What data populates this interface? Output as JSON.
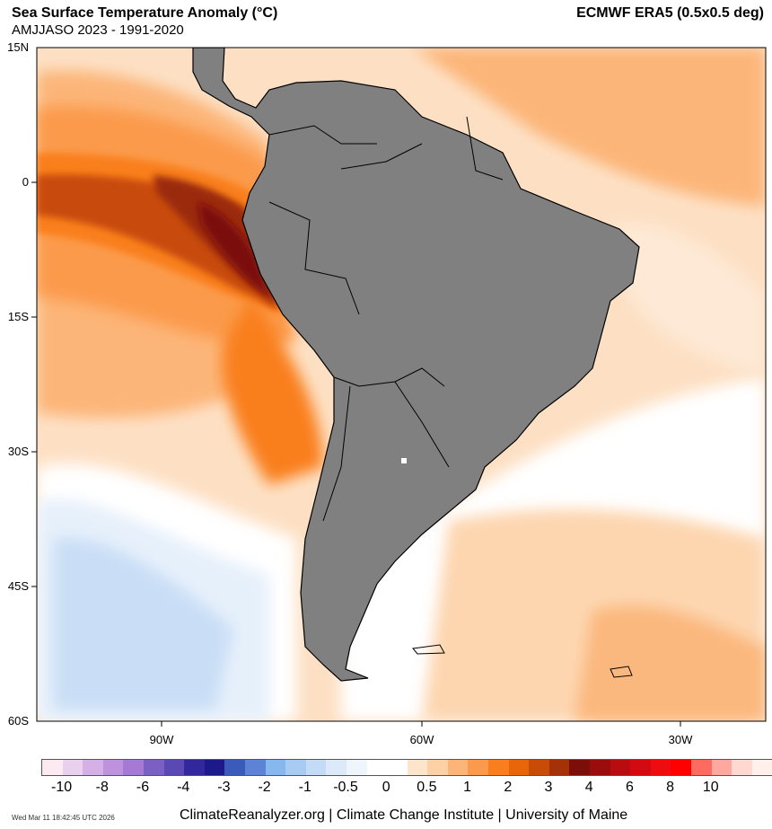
{
  "header": {
    "title": "Sea Surface Temperature Anomaly (°C)",
    "subtitle": "AMJJASO 2023 - 1991-2020",
    "source": "ECMWF ERA5 (0.5x0.5 deg)"
  },
  "map": {
    "lat_labels": [
      "15N",
      "0",
      "15S",
      "30S",
      "45S",
      "60S"
    ],
    "lon_labels": [
      "90W",
      "60W",
      "30W"
    ],
    "land_color": "#808080",
    "ocean_base_color": "#fde0c4"
  },
  "colorbar": {
    "colors": [
      "#fde9f2",
      "#e8d0ee",
      "#d4b0e6",
      "#bf92dd",
      "#a67ad4",
      "#7c5fc3",
      "#5a49b5",
      "#33279e",
      "#1c1a8a",
      "#3b5bbb",
      "#5d83d6",
      "#86b8ee",
      "#a8cbf3",
      "#c3dbf6",
      "#dbe9fa",
      "#eef5fd",
      "#ffffff",
      "#ffffff",
      "#fde5cc",
      "#fdd0a5",
      "#fcb578",
      "#fb9a4c",
      "#f97f1e",
      "#e86509",
      "#c84b08",
      "#a53108",
      "#7c0e0a",
      "#9b0d0c",
      "#b80c10",
      "#d40a12",
      "#ee0c10",
      "#ff0000",
      "#ff6b61",
      "#ffa99e",
      "#ffd8cf",
      "#fff0ec"
    ],
    "labels": [
      "-10",
      "-8",
      "-6",
      "-4",
      "-3",
      "-2",
      "-1",
      "-0.5",
      "0",
      "0.5",
      "1",
      "2",
      "3",
      "4",
      "6",
      "8",
      "10"
    ]
  },
  "footer": {
    "timestamp": "Wed Mar 11 18:42:45 UTC 2026",
    "credit": "ClimateReanalyzer.org | Climate Change Institute | University of Maine"
  }
}
